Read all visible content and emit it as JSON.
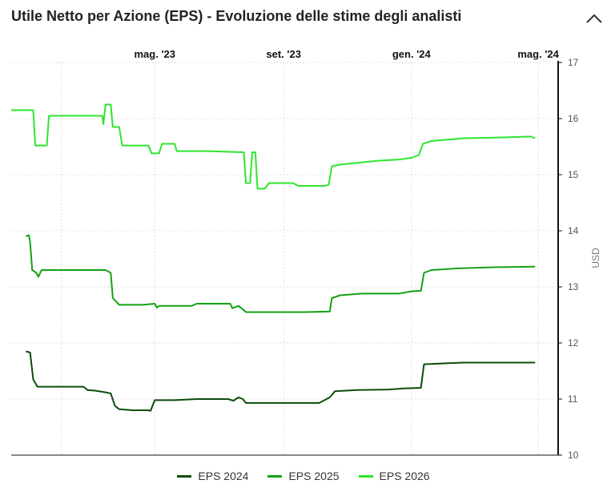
{
  "header": {
    "title": "Utile Netto per Azione (EPS) - Evoluzione delle stime degli analisti",
    "collapse_icon": "chevron-up-icon"
  },
  "chart_data": {
    "type": "line",
    "title": "Utile Netto per Azione (EPS) - Evoluzione delle stime degli analisti",
    "ylabel": "USD",
    "ylim": [
      10,
      17
    ],
    "yticks": [
      10,
      11,
      12,
      13,
      14,
      15,
      16,
      17
    ],
    "xlim": [
      "2022-12-15",
      "2024-05-20"
    ],
    "xticks": [
      {
        "date": "2023-05-01",
        "label": "mag. '23"
      },
      {
        "date": "2023-09-01",
        "label": "set. '23"
      },
      {
        "date": "2024-01-01",
        "label": "gen. '24"
      },
      {
        "date": "2024-05-01",
        "label": "mag. '24"
      }
    ],
    "grid": "dotted",
    "legend_position": "bottom",
    "series": [
      {
        "name": "EPS 2024",
        "color": "#0a4d0a",
        "points": [
          [
            "2022-12-29",
            11.85
          ],
          [
            "2023-01-02",
            11.83
          ],
          [
            "2023-01-05",
            11.35
          ],
          [
            "2023-01-09",
            11.22
          ],
          [
            "2023-01-15",
            11.22
          ],
          [
            "2023-02-10",
            11.22
          ],
          [
            "2023-02-22",
            11.22
          ],
          [
            "2023-02-26",
            11.16
          ],
          [
            "2023-03-05",
            11.15
          ],
          [
            "2023-03-15",
            11.12
          ],
          [
            "2023-03-20",
            11.1
          ],
          [
            "2023-03-24",
            10.88
          ],
          [
            "2023-03-28",
            10.82
          ],
          [
            "2023-04-10",
            10.8
          ],
          [
            "2023-04-25",
            10.8
          ],
          [
            "2023-04-27",
            10.79
          ],
          [
            "2023-05-01",
            10.98
          ],
          [
            "2023-05-20",
            10.98
          ],
          [
            "2023-06-10",
            11.0
          ],
          [
            "2023-07-10",
            11.0
          ],
          [
            "2023-07-15",
            10.97
          ],
          [
            "2023-07-20",
            11.03
          ],
          [
            "2023-07-24",
            11.0
          ],
          [
            "2023-07-27",
            10.93
          ],
          [
            "2023-08-10",
            10.93
          ],
          [
            "2023-09-10",
            10.93
          ],
          [
            "2023-10-05",
            10.93
          ],
          [
            "2023-10-15",
            11.03
          ],
          [
            "2023-10-20",
            11.14
          ],
          [
            "2023-11-10",
            11.16
          ],
          [
            "2023-12-10",
            11.17
          ],
          [
            "2023-12-25",
            11.19
          ],
          [
            "2024-01-10",
            11.2
          ],
          [
            "2024-01-13",
            11.62
          ],
          [
            "2024-01-25",
            11.63
          ],
          [
            "2024-02-20",
            11.65
          ],
          [
            "2024-03-20",
            11.65
          ],
          [
            "2024-04-15",
            11.65
          ],
          [
            "2024-04-28",
            11.65
          ]
        ]
      },
      {
        "name": "EPS 2025",
        "color": "#15a015",
        "points": [
          [
            "2022-12-29",
            13.9
          ],
          [
            "2023-01-01",
            13.92
          ],
          [
            "2023-01-02",
            13.8
          ],
          [
            "2023-01-04",
            13.3
          ],
          [
            "2023-01-08",
            13.25
          ],
          [
            "2023-01-10",
            13.18
          ],
          [
            "2023-01-13",
            13.3
          ],
          [
            "2023-02-10",
            13.3
          ],
          [
            "2023-03-15",
            13.3
          ],
          [
            "2023-03-20",
            13.25
          ],
          [
            "2023-03-22",
            12.8
          ],
          [
            "2023-03-26",
            12.72
          ],
          [
            "2023-03-28",
            12.68
          ],
          [
            "2023-04-20",
            12.68
          ],
          [
            "2023-05-01",
            12.7
          ],
          [
            "2023-05-03",
            12.63
          ],
          [
            "2023-05-05",
            12.66
          ],
          [
            "2023-06-05",
            12.66
          ],
          [
            "2023-06-10",
            12.7
          ],
          [
            "2023-07-12",
            12.7
          ],
          [
            "2023-07-14",
            12.62
          ],
          [
            "2023-07-20",
            12.66
          ],
          [
            "2023-07-24",
            12.6
          ],
          [
            "2023-07-27",
            12.55
          ],
          [
            "2023-08-20",
            12.55
          ],
          [
            "2023-09-20",
            12.55
          ],
          [
            "2023-10-15",
            12.56
          ],
          [
            "2023-10-17",
            12.8
          ],
          [
            "2023-10-25",
            12.85
          ],
          [
            "2023-11-15",
            12.88
          ],
          [
            "2023-12-20",
            12.88
          ],
          [
            "2024-01-01",
            12.92
          ],
          [
            "2024-01-10",
            12.93
          ],
          [
            "2024-01-13",
            13.25
          ],
          [
            "2024-01-20",
            13.3
          ],
          [
            "2024-02-15",
            13.33
          ],
          [
            "2024-03-20",
            13.35
          ],
          [
            "2024-04-28",
            13.36
          ]
        ]
      },
      {
        "name": "EPS 2026",
        "color": "#2ee62e",
        "points": [
          [
            "2022-12-15",
            16.15
          ],
          [
            "2023-01-05",
            16.15
          ],
          [
            "2023-01-07",
            15.52
          ],
          [
            "2023-01-18",
            15.52
          ],
          [
            "2023-01-20",
            16.05
          ],
          [
            "2023-02-22",
            16.05
          ],
          [
            "2023-03-12",
            16.05
          ],
          [
            "2023-03-13",
            15.9
          ],
          [
            "2023-03-15",
            16.25
          ],
          [
            "2023-03-20",
            16.25
          ],
          [
            "2023-03-22",
            15.85
          ],
          [
            "2023-03-28",
            15.85
          ],
          [
            "2023-03-31",
            15.52
          ],
          [
            "2023-04-25",
            15.52
          ],
          [
            "2023-04-28",
            15.38
          ],
          [
            "2023-05-05",
            15.38
          ],
          [
            "2023-05-08",
            15.55
          ],
          [
            "2023-05-20",
            15.55
          ],
          [
            "2023-05-22",
            15.42
          ],
          [
            "2023-06-20",
            15.42
          ],
          [
            "2023-07-25",
            15.4
          ],
          [
            "2023-07-27",
            14.85
          ],
          [
            "2023-07-31",
            14.85
          ],
          [
            "2023-08-02",
            15.4
          ],
          [
            "2023-08-05",
            15.4
          ],
          [
            "2023-08-07",
            14.75
          ],
          [
            "2023-08-14",
            14.75
          ],
          [
            "2023-08-18",
            14.85
          ],
          [
            "2023-09-10",
            14.85
          ],
          [
            "2023-09-15",
            14.8
          ],
          [
            "2023-10-10",
            14.8
          ],
          [
            "2023-10-14",
            14.82
          ],
          [
            "2023-10-17",
            15.15
          ],
          [
            "2023-10-25",
            15.18
          ],
          [
            "2023-11-15",
            15.22
          ],
          [
            "2023-12-01",
            15.25
          ],
          [
            "2023-12-20",
            15.27
          ],
          [
            "2024-01-01",
            15.3
          ],
          [
            "2024-01-08",
            15.35
          ],
          [
            "2024-01-12",
            15.55
          ],
          [
            "2024-01-20",
            15.6
          ],
          [
            "2024-02-01",
            15.62
          ],
          [
            "2024-02-20",
            15.65
          ],
          [
            "2024-03-20",
            15.66
          ],
          [
            "2024-04-24",
            15.68
          ],
          [
            "2024-04-28",
            15.65
          ]
        ]
      }
    ]
  }
}
